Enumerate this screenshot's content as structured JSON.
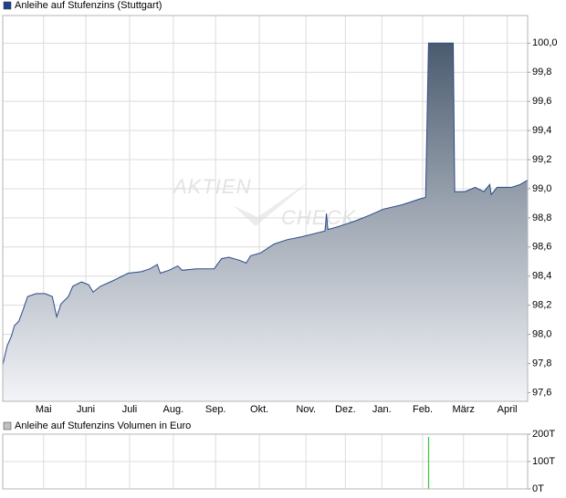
{
  "chart_data": [
    {
      "type": "area",
      "title": "Anleihe auf Stufenzins (Stuttgart)",
      "legend_color": "#1f3f8f",
      "watermark": [
        "AKTIEN",
        "CHECK"
      ],
      "series": [
        {
          "name": "Anleihe auf Stufenzins (Stuttgart)",
          "color": "#2a4a8c",
          "x": [
            0,
            3,
            6,
            8,
            11,
            14,
            17,
            23,
            29,
            34,
            37,
            40,
            45,
            48,
            54,
            59,
            62,
            67,
            76,
            86,
            95,
            101,
            106,
            108,
            114,
            120,
            123,
            133,
            145,
            150,
            155,
            162,
            167,
            170,
            177,
            186,
            195,
            205,
            217,
            221,
            222,
            223,
            230,
            242,
            252,
            261,
            274,
            286,
            290,
            292,
            309,
            310,
            317,
            324,
            330,
            334,
            335,
            339,
            349,
            355,
            360
          ],
          "values": [
            97.79,
            97.92,
            97.99,
            98.06,
            98.09,
            98.17,
            98.26,
            98.28,
            98.28,
            98.26,
            98.12,
            98.21,
            98.26,
            98.33,
            98.36,
            98.34,
            98.29,
            98.33,
            98.37,
            98.42,
            98.43,
            98.45,
            98.48,
            98.42,
            98.44,
            98.47,
            98.44,
            98.45,
            98.45,
            98.52,
            98.53,
            98.51,
            98.49,
            98.54,
            98.56,
            98.62,
            98.65,
            98.67,
            98.7,
            98.71,
            98.83,
            98.72,
            98.74,
            98.78,
            98.82,
            98.86,
            98.89,
            98.93,
            98.94,
            100.0,
            100.0,
            98.98,
            98.98,
            99.01,
            98.98,
            99.03,
            98.96,
            99.01,
            99.01,
            99.03,
            99.06
          ]
        }
      ],
      "xlim": [
        0,
        360
      ],
      "xticks": [
        {
          "value": 28,
          "label": "Mai"
        },
        {
          "value": 57,
          "label": "Juni"
        },
        {
          "value": 87,
          "label": "Juli"
        },
        {
          "value": 117,
          "label": "Aug."
        },
        {
          "value": 146,
          "label": "Sep."
        },
        {
          "value": 176,
          "label": "Okt."
        },
        {
          "value": 208,
          "label": "Nov."
        },
        {
          "value": 235,
          "label": "Dez."
        },
        {
          "value": 260,
          "label": "Jan."
        },
        {
          "value": 288,
          "label": "Feb."
        },
        {
          "value": 316,
          "label": "März"
        },
        {
          "value": 346,
          "label": "April"
        }
      ],
      "ylim": [
        97.54,
        100.19
      ],
      "yticks": [
        {
          "value": 97.6,
          "label": "97,6"
        },
        {
          "value": 97.8,
          "label": "97,8"
        },
        {
          "value": 98.0,
          "label": "98,0"
        },
        {
          "value": 98.2,
          "label": "98,2"
        },
        {
          "value": 98.4,
          "label": "98,4"
        },
        {
          "value": 98.6,
          "label": "98,6"
        },
        {
          "value": 98.8,
          "label": "98,8"
        },
        {
          "value": 99.0,
          "label": "99,0"
        },
        {
          "value": 99.2,
          "label": "99,2"
        },
        {
          "value": 99.4,
          "label": "99,4"
        },
        {
          "value": 99.6,
          "label": "99,6"
        },
        {
          "value": 99.8,
          "label": "99,8"
        },
        {
          "value": 100.0,
          "label": "100,0"
        }
      ],
      "grid": true
    },
    {
      "type": "bar",
      "title": "Anleihe auf Stufenzins Volumen in Euro",
      "legend_color": "#c0c0c0",
      "series": [
        {
          "name": "Anleihe auf Stufenzins Volumen in Euro",
          "color": "#3cc43c",
          "x": [
            292
          ],
          "values": [
            190
          ]
        }
      ],
      "xlim": [
        0,
        360
      ],
      "xticks": [
        28,
        57,
        87,
        117,
        146,
        176,
        208,
        235,
        260,
        288,
        316,
        346
      ],
      "ylim": [
        0,
        200
      ],
      "yticks": [
        {
          "value": 0,
          "label": "0T"
        },
        {
          "value": 100,
          "label": "100T"
        },
        {
          "value": 200,
          "label": "200T"
        }
      ],
      "grid": true
    }
  ]
}
